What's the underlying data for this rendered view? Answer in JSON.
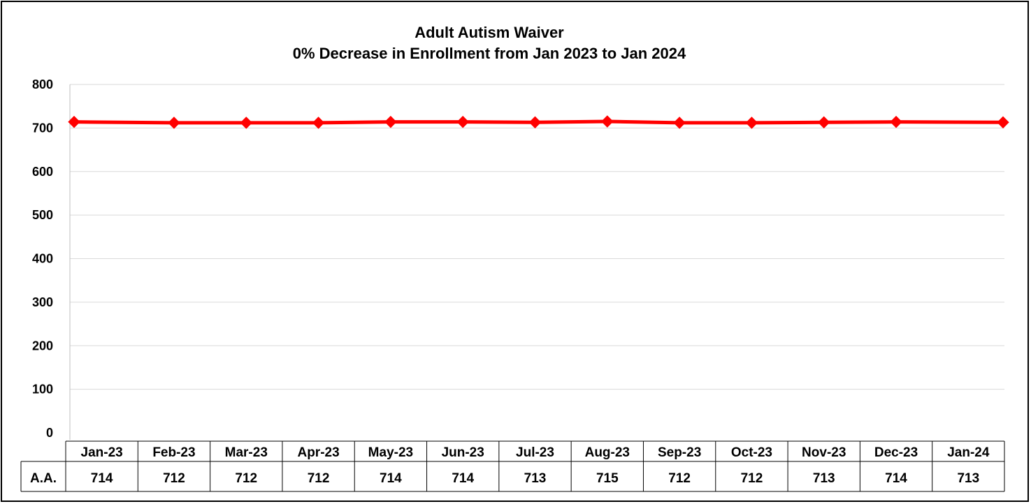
{
  "chart_data": {
    "type": "line",
    "title": "Adult Autism Waiver",
    "subtitle": "0% Decrease in Enrollment from Jan 2023 to Jan 2024",
    "categories": [
      "Jan-23",
      "Feb-23",
      "Mar-23",
      "Apr-23",
      "May-23",
      "Jun-23",
      "Jul-23",
      "Aug-23",
      "Sep-23",
      "Oct-23",
      "Nov-23",
      "Dec-23",
      "Jan-24"
    ],
    "series": [
      {
        "name": "A.A.",
        "values": [
          714,
          712,
          712,
          712,
          714,
          714,
          713,
          715,
          712,
          712,
          713,
          714,
          713
        ]
      }
    ],
    "ylim": [
      0,
      800
    ],
    "yticks": [
      "0",
      "100",
      "200",
      "300",
      "400",
      "500",
      "600",
      "700",
      "800"
    ],
    "grid": true,
    "data_table": true,
    "line_color": "#ff0000",
    "marker": "diamond"
  }
}
